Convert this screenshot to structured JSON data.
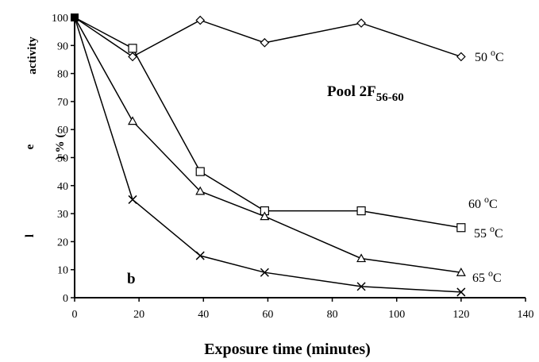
{
  "chart_data": {
    "type": "line",
    "title": "",
    "xlabel": "Exposure time (minutes)",
    "ylabel_fragments": [
      "activity",
      "e",
      "(",
      "%",
      ")",
      "l"
    ],
    "annotation": "Pool 2F",
    "annotation_sub": "56-60",
    "panel_label": "b",
    "xlim": [
      0,
      140
    ],
    "ylim": [
      0,
      100
    ],
    "x_ticks": [
      "0",
      "20",
      "40",
      "60",
      "80",
      "100",
      "120",
      "140"
    ],
    "y_ticks": [
      "0",
      "10",
      "20",
      "30",
      "40",
      "50",
      "60",
      "70",
      "80",
      "90",
      "100"
    ],
    "grid": false,
    "series": [
      {
        "label": "50 °C",
        "marker": "diamond",
        "x": [
          0,
          18,
          39,
          59,
          89,
          120
        ],
        "y": [
          100,
          86,
          99,
          91,
          98,
          86
        ]
      },
      {
        "label": "60 °C",
        "marker": "square",
        "x": [
          0,
          18,
          39,
          59,
          89,
          120
        ],
        "y": [
          100,
          89,
          45,
          31,
          31,
          25
        ]
      },
      {
        "label": "55 °C",
        "marker": "triangle",
        "x": [
          0,
          18,
          39,
          59,
          89,
          120
        ],
        "y": [
          100,
          63,
          38,
          29,
          14,
          9
        ]
      },
      {
        "label": "65 °C",
        "marker": "cross",
        "x": [
          0,
          18,
          39,
          59,
          89,
          120
        ],
        "y": [
          100,
          35,
          15,
          9,
          4,
          2
        ]
      }
    ]
  }
}
